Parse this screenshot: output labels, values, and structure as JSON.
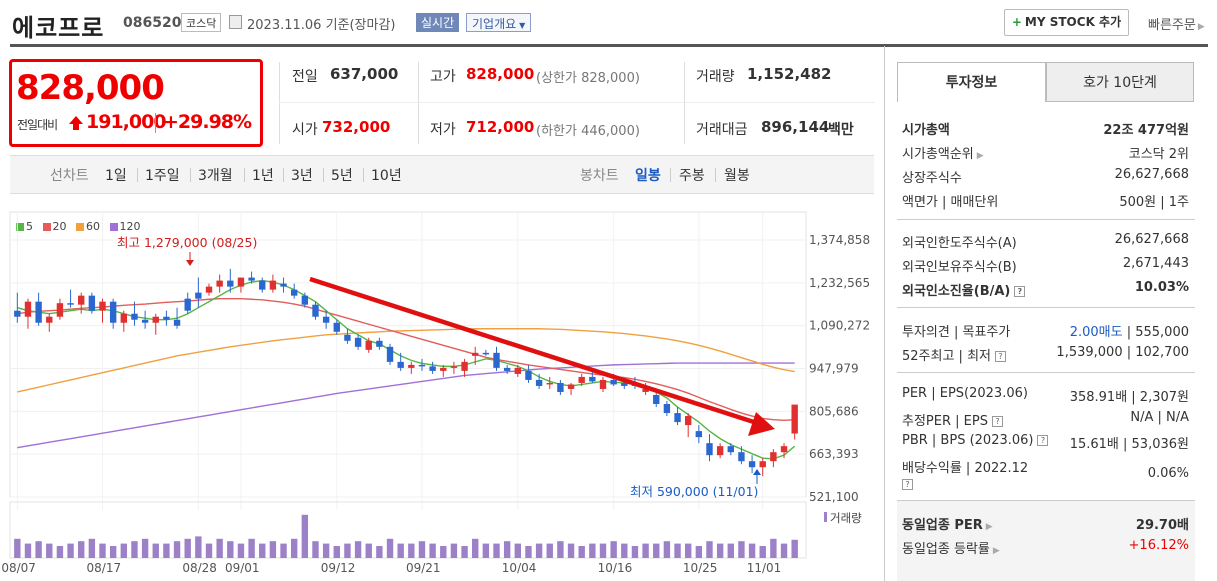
{
  "header": {
    "name": "에코프로",
    "code": "086520",
    "market_tag": "코스닥",
    "date": "2023.11.06  기준(장마감)",
    "live_badge": "실시간",
    "company_info": "기업개요",
    "mystock": "MY STOCK 추가",
    "quick_order": "빠른주문"
  },
  "price": {
    "current": "828,000",
    "prev_label": "전일대비",
    "change": "191,000",
    "change_pct": "+29.98%"
  },
  "summary": {
    "prev_close_label": "전일",
    "prev_close": "637,000",
    "high_label": "고가",
    "high": "828,000",
    "upper_limit": "(상한가 828,000)",
    "volume_label": "거래량",
    "volume": "1,152,482",
    "open_label": "시가",
    "open": "732,000",
    "low_label": "저가",
    "low": "712,000",
    "lower_limit": "(하한가 446,000)",
    "amount_label": "거래대금",
    "amount": "896,144",
    "amount_unit": "백만"
  },
  "chart_tabs": {
    "line_label": "선차트",
    "periods": [
      "1일",
      "1주일",
      "3개월",
      "1년",
      "3년",
      "5년",
      "10년"
    ],
    "candle_label": "봉차트",
    "candles": [
      "일봉",
      "주봉",
      "월봉"
    ]
  },
  "legend": [
    "5",
    "20",
    "60",
    "120"
  ],
  "colors": {
    "ma5": "#55b545",
    "ma20": "#e45c5c",
    "ma60": "#f0a040",
    "ma120": "#a070d8",
    "up": "#e03030",
    "down": "#2a68d0",
    "vol": "#9c80c8"
  },
  "annotations": {
    "high": "최고 1,279,000 (08/25)",
    "low": "최저 590,000 (11/01)",
    "volume_label": "거래량"
  },
  "panel": {
    "tabs": [
      "투자정보",
      "호가 10단계"
    ],
    "rows1": [
      {
        "label": "시가총액",
        "value": "22조 477억원"
      },
      {
        "label": "시가총액순위",
        "value": "코스닥 2위"
      },
      {
        "label": "상장주식수",
        "value": "26,627,668"
      },
      {
        "label": "액면가 | 매매단위",
        "value": "500원 | 1주"
      }
    ],
    "rows2": [
      {
        "label": "외국인한도주식수(A)",
        "value": "26,627,668"
      },
      {
        "label": "외국인보유주식수(B)",
        "value": "2,671,443"
      },
      {
        "label": "외국인소진율(B/A)",
        "value": "10.03%"
      }
    ],
    "rows3": [
      {
        "label": "투자의견 | 목표주가",
        "value_a": "2.00매도",
        "value_b": " | 555,000"
      },
      {
        "label": "52주최고 | 최저",
        "value": "1,539,000 | 102,700"
      }
    ],
    "rows4": [
      {
        "label": "PER | EPS(2023.06)",
        "value": "358.91배 | 2,307원"
      },
      {
        "label": "추정PER | EPS",
        "value": "N/A | N/A"
      },
      {
        "label": "PBR | BPS (2023.06)",
        "value": "15.61배 | 53,036원"
      },
      {
        "label": "배당수익률 | 2022.12",
        "value": "0.06%"
      }
    ],
    "rows5": [
      {
        "label": "동일업종 PER",
        "value": "29.70배"
      },
      {
        "label": "동일업종 등락률",
        "value": "+16.12%"
      }
    ]
  },
  "chart_data": {
    "type": "candlestick",
    "y_ticks": [
      "1,374,858",
      "1,232,565",
      "1,090,272",
      "947,979",
      "805,686",
      "663,393",
      "521,100"
    ],
    "ylim": [
      521100,
      1374858
    ],
    "x_ticks": [
      "08/07",
      "08/17",
      "08/28",
      "09/01",
      "09/12",
      "09/21",
      "10/04",
      "10/16",
      "10/25",
      "11/01"
    ],
    "candles": [
      [
        1140000,
        1200000,
        1100000,
        1120000
      ],
      [
        1120000,
        1180000,
        1080000,
        1170000
      ],
      [
        1170000,
        1200000,
        1090000,
        1100000
      ],
      [
        1100000,
        1130000,
        1070000,
        1120000
      ],
      [
        1120000,
        1180000,
        1110000,
        1165000
      ],
      [
        1165000,
        1210000,
        1150000,
        1160000
      ],
      [
        1160000,
        1200000,
        1130000,
        1190000
      ],
      [
        1190000,
        1200000,
        1130000,
        1140000
      ],
      [
        1140000,
        1180000,
        1100000,
        1170000
      ],
      [
        1170000,
        1180000,
        1080000,
        1100000
      ],
      [
        1100000,
        1140000,
        1070000,
        1130000
      ],
      [
        1130000,
        1170000,
        1090000,
        1110000
      ],
      [
        1110000,
        1140000,
        1080000,
        1100000
      ],
      [
        1100000,
        1130000,
        1060000,
        1120000
      ],
      [
        1120000,
        1140000,
        1090000,
        1110000
      ],
      [
        1110000,
        1150000,
        1080000,
        1090000
      ],
      [
        1180000,
        1200000,
        1130000,
        1140000
      ],
      [
        1200000,
        1250000,
        1150000,
        1180000
      ],
      [
        1200000,
        1230000,
        1190000,
        1220000
      ],
      [
        1220000,
        1260000,
        1200000,
        1240000
      ],
      [
        1240000,
        1279000,
        1200000,
        1220000
      ],
      [
        1220000,
        1250000,
        1200000,
        1250000
      ],
      [
        1250000,
        1270000,
        1230000,
        1240000
      ],
      [
        1240000,
        1250000,
        1200000,
        1210000
      ],
      [
        1210000,
        1260000,
        1200000,
        1240000
      ],
      [
        1230000,
        1250000,
        1200000,
        1220000
      ],
      [
        1210000,
        1230000,
        1180000,
        1190000
      ],
      [
        1190000,
        1200000,
        1150000,
        1160000
      ],
      [
        1160000,
        1170000,
        1110000,
        1120000
      ],
      [
        1120000,
        1140000,
        1080000,
        1100000
      ],
      [
        1100000,
        1110000,
        1060000,
        1070000
      ],
      [
        1060000,
        1080000,
        1030000,
        1040000
      ],
      [
        1050000,
        1060000,
        1010000,
        1020000
      ],
      [
        1010000,
        1050000,
        1000000,
        1040000
      ],
      [
        1040000,
        1050000,
        1010000,
        1020000
      ],
      [
        1020000,
        1030000,
        960000,
        970000
      ],
      [
        970000,
        1000000,
        940000,
        950000
      ],
      [
        950000,
        970000,
        930000,
        960000
      ],
      [
        960000,
        980000,
        940000,
        955000
      ],
      [
        955000,
        970000,
        930000,
        940000
      ],
      [
        940000,
        960000,
        920000,
        950000
      ],
      [
        950000,
        970000,
        930000,
        955000
      ],
      [
        940000,
        980000,
        920000,
        970000
      ],
      [
        990000,
        1020000,
        960000,
        1000000
      ],
      [
        1000000,
        1010000,
        990000,
        998000
      ],
      [
        1000000,
        1020000,
        940000,
        950000
      ],
      [
        950000,
        960000,
        930000,
        940000
      ],
      [
        930000,
        960000,
        920000,
        950000
      ],
      [
        940000,
        960000,
        900000,
        910000
      ],
      [
        910000,
        930000,
        880000,
        890000
      ],
      [
        895000,
        920000,
        880000,
        900000
      ],
      [
        900000,
        910000,
        860000,
        870000
      ],
      [
        880000,
        900000,
        860000,
        895000
      ],
      [
        900000,
        930000,
        890000,
        920000
      ],
      [
        920000,
        940000,
        900000,
        905000
      ],
      [
        880000,
        920000,
        870000,
        910000
      ],
      [
        910000,
        930000,
        890000,
        895000
      ],
      [
        900000,
        910000,
        880000,
        890000
      ],
      [
        900000,
        920000,
        880000,
        890000
      ],
      [
        870000,
        900000,
        860000,
        880000
      ],
      [
        860000,
        870000,
        820000,
        830000
      ],
      [
        830000,
        840000,
        790000,
        800000
      ],
      [
        800000,
        820000,
        760000,
        770000
      ],
      [
        760000,
        800000,
        720000,
        790000
      ],
      [
        740000,
        760000,
        700000,
        720000
      ],
      [
        700000,
        730000,
        640000,
        660000
      ],
      [
        660000,
        700000,
        650000,
        690000
      ],
      [
        690000,
        700000,
        660000,
        670000
      ],
      [
        670000,
        690000,
        630000,
        640000
      ],
      [
        640000,
        660000,
        600000,
        620000
      ],
      [
        620000,
        650000,
        590000,
        640000
      ],
      [
        640000,
        680000,
        620000,
        670000
      ],
      [
        670000,
        700000,
        650000,
        690000
      ],
      [
        732000,
        828000,
        712000,
        828000
      ]
    ],
    "volume": [
      0.4,
      0.3,
      0.35,
      0.3,
      0.25,
      0.3,
      0.35,
      0.4,
      0.3,
      0.25,
      0.3,
      0.35,
      0.4,
      0.3,
      0.3,
      0.35,
      0.4,
      0.45,
      0.3,
      0.4,
      0.35,
      0.3,
      0.4,
      0.3,
      0.35,
      0.3,
      0.4,
      0.9,
      0.35,
      0.3,
      0.25,
      0.3,
      0.35,
      0.3,
      0.25,
      0.4,
      0.3,
      0.3,
      0.35,
      0.3,
      0.25,
      0.3,
      0.25,
      0.4,
      0.3,
      0.3,
      0.35,
      0.3,
      0.25,
      0.3,
      0.3,
      0.35,
      0.3,
      0.25,
      0.3,
      0.3,
      0.35,
      0.3,
      0.25,
      0.3,
      0.3,
      0.35,
      0.3,
      0.3,
      0.25,
      0.35,
      0.3,
      0.3,
      0.35,
      0.3,
      0.25,
      0.4,
      0.3,
      0.38
    ],
    "series": [
      {
        "name": "5",
        "values": [
          1150000,
          1140000,
          1135000,
          1130000,
          1135000,
          1140000,
          1145000,
          1140000,
          1145000,
          1140000,
          1130000,
          1120000,
          1115000,
          1110000,
          1110000,
          1115000,
          1130000,
          1150000,
          1170000,
          1190000,
          1210000,
          1225000,
          1235000,
          1240000,
          1235000,
          1225000,
          1210000,
          1190000,
          1170000,
          1140000,
          1110000,
          1080000,
          1060000,
          1040000,
          1030000,
          1010000,
          990000,
          975000,
          965000,
          960000,
          955000,
          955000,
          960000,
          970000,
          980000,
          975000,
          965000,
          955000,
          940000,
          920000,
          905000,
          895000,
          890000,
          895000,
          900000,
          905000,
          902000,
          900000,
          895000,
          885000,
          870000,
          850000,
          820000,
          795000,
          770000,
          740000,
          715000,
          695000,
          680000,
          665000,
          650000,
          648000,
          660000,
          690000
        ]
      },
      {
        "name": "20",
        "values": [
          1130000,
          1135000,
          1138000,
          1140000,
          1142000,
          1145000,
          1148000,
          1150000,
          1152000,
          1155000,
          1158000,
          1160000,
          1162000,
          1165000,
          1168000,
          1170000,
          1172000,
          1175000,
          1178000,
          1180000,
          1180000,
          1180000,
          1178000,
          1176000,
          1172000,
          1168000,
          1162000,
          1155000,
          1145000,
          1135000,
          1125000,
          1115000,
          1105000,
          1095000,
          1085000,
          1075000,
          1065000,
          1055000,
          1045000,
          1035000,
          1025000,
          1015000,
          1005000,
          995000,
          985000,
          978000,
          972000,
          966000,
          960000,
          955000,
          950000,
          945000,
          940000,
          935000,
          930000,
          926000,
          922000,
          918000,
          912000,
          905000,
          897000,
          888000,
          878000,
          866000,
          852000,
          838000,
          825000,
          812000,
          800000,
          790000,
          782000,
          778000,
          776000,
          778000
        ]
      },
      {
        "name": "60",
        "values": [
          870000,
          878000,
          886000,
          894000,
          902000,
          910000,
          918000,
          926000,
          934000,
          942000,
          950000,
          958000,
          966000,
          974000,
          982000,
          990000,
          996000,
          1002000,
          1008000,
          1014000,
          1020000,
          1025000,
          1030000,
          1035000,
          1040000,
          1044000,
          1048000,
          1052000,
          1056000,
          1060000,
          1062000,
          1064000,
          1066000,
          1068000,
          1070000,
          1072000,
          1073000,
          1074000,
          1075000,
          1076000,
          1077000,
          1078000,
          1079000,
          1080000,
          1080000,
          1080000,
          1080000,
          1080000,
          1080000,
          1080000,
          1079000,
          1078000,
          1076000,
          1074000,
          1072000,
          1070000,
          1067000,
          1064000,
          1060000,
          1056000,
          1051000,
          1046000,
          1040000,
          1033000,
          1025000,
          1016000,
          1006000,
          995000,
          984000,
          973000,
          962000,
          952000,
          944000,
          938000
        ]
      },
      {
        "name": "120",
        "values": [
          685000,
          691000,
          697000,
          703000,
          709000,
          715000,
          721000,
          727000,
          733000,
          739000,
          745000,
          751000,
          757000,
          763000,
          769000,
          775000,
          781000,
          787000,
          793000,
          799000,
          805000,
          811000,
          817000,
          823000,
          829000,
          835000,
          841000,
          847000,
          853000,
          859000,
          865000,
          870000,
          875000,
          880000,
          885000,
          890000,
          895000,
          900000,
          905000,
          910000,
          915000,
          920000,
          925000,
          928000,
          931000,
          934000,
          937000,
          940000,
          943000,
          946000,
          948000,
          950000,
          952000,
          954000,
          956000,
          958000,
          960000,
          961000,
          962000,
          963000,
          964000,
          965000,
          966000,
          966000,
          966000,
          966000,
          966000,
          966000,
          966000,
          966000,
          966000,
          966000,
          966000,
          966000
        ]
      }
    ]
  }
}
